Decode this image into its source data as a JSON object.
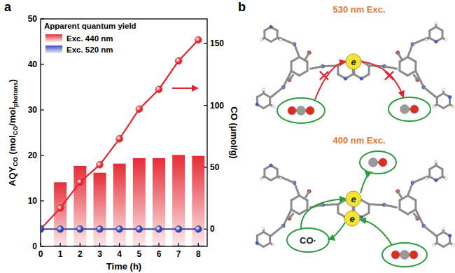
{
  "figure": {
    "panel_labels": [
      "a",
      "b"
    ]
  },
  "chart_data": {
    "type": "bar",
    "x": [
      0,
      1,
      2,
      3,
      4,
      5,
      6,
      7,
      8
    ],
    "xlabel": "Time (h)",
    "ylabel": [
      "AQY",
      "CO",
      " (mol",
      "CO",
      "/mol",
      "photons",
      ")"
    ],
    "y2label": "CO (μmol/g)",
    "legend_title": "Apparent quantum yield",
    "xlim": [
      0,
      8.45
    ],
    "xticks": [
      0,
      1,
      2,
      3,
      4,
      5,
      6,
      7,
      8
    ],
    "ylim": [
      0,
      50
    ],
    "yticks": [
      0,
      10,
      20,
      30,
      40,
      50
    ],
    "y2lim": [
      -14,
      170
    ],
    "y2ticks": [
      0,
      50,
      100,
      150
    ],
    "grid": false,
    "legend": "top-left",
    "series": [
      {
        "name": "Exc. 440 nm",
        "type": "bar",
        "color": "#e52d36",
        "values": [
          null,
          14.1,
          17.7,
          16.2,
          18.2,
          19.4,
          19.4,
          20.1,
          19.9
        ]
      },
      {
        "name": "Exc. 520 nm",
        "type": "bar",
        "color": "#3b4cc0",
        "values": [
          null,
          0.2,
          0.2,
          0.2,
          0.2,
          0.2,
          0.2,
          0.2,
          0.2
        ]
      },
      {
        "type": "line",
        "axis": "y2",
        "color": "#e0262f",
        "marker": "circle",
        "values": [
          0,
          17,
          38,
          52,
          73,
          97,
          113,
          136,
          153
        ]
      },
      {
        "type": "line",
        "axis": "y2",
        "color": "#3344b0",
        "marker": "circle",
        "values": [
          0,
          0,
          0,
          0,
          0,
          0,
          0,
          0,
          0
        ]
      }
    ]
  },
  "diagram": {
    "panels": [
      {
        "title": "530 nm Exc.",
        "electrons": [
          "e"
        ]
      },
      {
        "title": "400 nm Exc.",
        "electrons": [
          "e",
          "e"
        ],
        "radical": "CO·"
      }
    ]
  }
}
